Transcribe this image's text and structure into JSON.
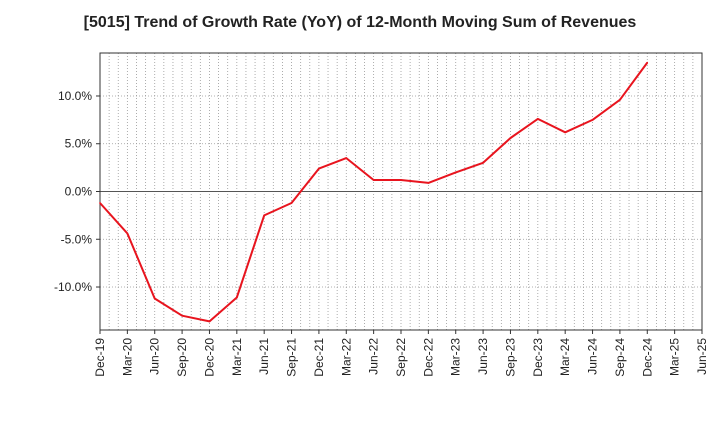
{
  "chart_data": {
    "type": "line",
    "title": "[5015]  Trend of Growth Rate (YoY) of 12-Month Moving Sum of Revenues",
    "xlabel": "",
    "ylabel": "",
    "categories": [
      "Dec-19",
      "Mar-20",
      "Jun-20",
      "Sep-20",
      "Dec-20",
      "Mar-21",
      "Jun-21",
      "Sep-21",
      "Dec-21",
      "Mar-22",
      "Jun-22",
      "Sep-22",
      "Dec-22",
      "Mar-23",
      "Jun-23",
      "Sep-23",
      "Dec-23",
      "Mar-24",
      "Jun-24",
      "Sep-24",
      "Dec-24",
      "Mar-25",
      "Jun-25"
    ],
    "series": [
      {
        "color": "#e8141e",
        "values": [
          -1.2,
          -4.4,
          -11.2,
          -13.0,
          -13.6,
          -11.1,
          -2.5,
          -1.2,
          2.4,
          3.5,
          1.2,
          1.2,
          0.9,
          2.0,
          3.0,
          5.6,
          7.6,
          6.2,
          7.5,
          9.6,
          13.5,
          null,
          null
        ]
      }
    ],
    "ylim": [
      -14.5,
      14.5
    ],
    "yticks": [
      10,
      5,
      0,
      -5,
      -10
    ],
    "ytick_labels": [
      "10.0%",
      "5.0%",
      "0.0%",
      "-5.0%",
      "-10.0%"
    ],
    "grid": true
  }
}
